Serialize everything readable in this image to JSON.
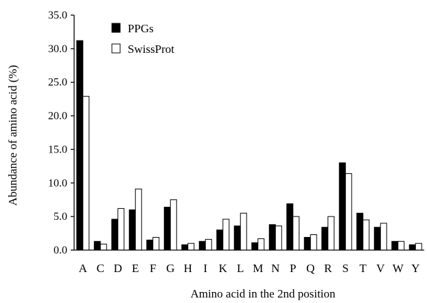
{
  "chart_data": {
    "type": "bar",
    "xlabel": "Amino acid in the 2nd position",
    "ylabel": "Abundance of amino acid (%)",
    "ylim": [
      0,
      35
    ],
    "yticks": [
      "0.0",
      "5.0",
      "10.0",
      "15.0",
      "20.0",
      "25.0",
      "30.0",
      "35.0"
    ],
    "categories": [
      "A",
      "C",
      "D",
      "E",
      "F",
      "G",
      "H",
      "I",
      "K",
      "L",
      "M",
      "N",
      "P",
      "Q",
      "R",
      "S",
      "T",
      "V",
      "W",
      "Y"
    ],
    "legend_position": "top-left",
    "grid": false,
    "series": [
      {
        "name": "PPGs",
        "color": "#000000",
        "values": [
          31.2,
          1.3,
          4.6,
          6.0,
          1.5,
          6.4,
          0.8,
          1.3,
          3.0,
          3.6,
          1.1,
          3.8,
          6.9,
          1.9,
          3.4,
          13.0,
          5.5,
          3.4,
          1.3,
          0.8
        ]
      },
      {
        "name": "SwissProt",
        "color": "#ffffff",
        "values": [
          22.9,
          0.9,
          6.2,
          9.1,
          1.9,
          7.5,
          1.0,
          1.6,
          4.6,
          5.5,
          1.7,
          3.6,
          5.0,
          2.3,
          5.0,
          11.4,
          4.5,
          4.0,
          1.3,
          1.0
        ]
      }
    ]
  }
}
